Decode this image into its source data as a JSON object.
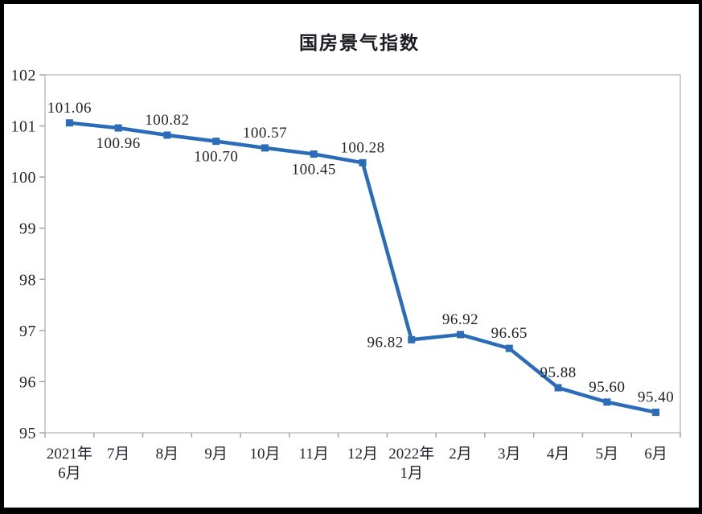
{
  "page": {
    "background": "#ffffff",
    "frame_color": "#000000"
  },
  "chart_data": {
    "type": "line",
    "title": "国房景气指数",
    "categories": [
      "2021年\n6月",
      "7月",
      "8月",
      "9月",
      "10月",
      "11月",
      "12月",
      "2022年\n1月",
      "2月",
      "3月",
      "4月",
      "5月",
      "6月"
    ],
    "values": [
      101.06,
      100.96,
      100.82,
      100.7,
      100.57,
      100.45,
      100.28,
      96.82,
      96.92,
      96.65,
      95.88,
      95.6,
      95.4
    ],
    "data_labels": [
      "101.06",
      "100.96",
      "100.82",
      "100.70",
      "100.57",
      "100.45",
      "100.28",
      "96.82",
      "96.92",
      "96.65",
      "95.88",
      "95.60",
      "95.40"
    ],
    "label_positions": [
      "above",
      "below",
      "above",
      "below",
      "above",
      "below",
      "above",
      "left",
      "above",
      "above",
      "above",
      "above",
      "above"
    ],
    "yticks": [
      95,
      96,
      97,
      98,
      99,
      100,
      101,
      102
    ],
    "ylim": [
      95,
      102
    ],
    "grid": false,
    "legend": "none",
    "marker": "square",
    "line_color": "#2B6CB8",
    "plot_border_color": "#cfcfcf",
    "tick_color": "#a6a6a6",
    "text_color": "#22242c"
  }
}
